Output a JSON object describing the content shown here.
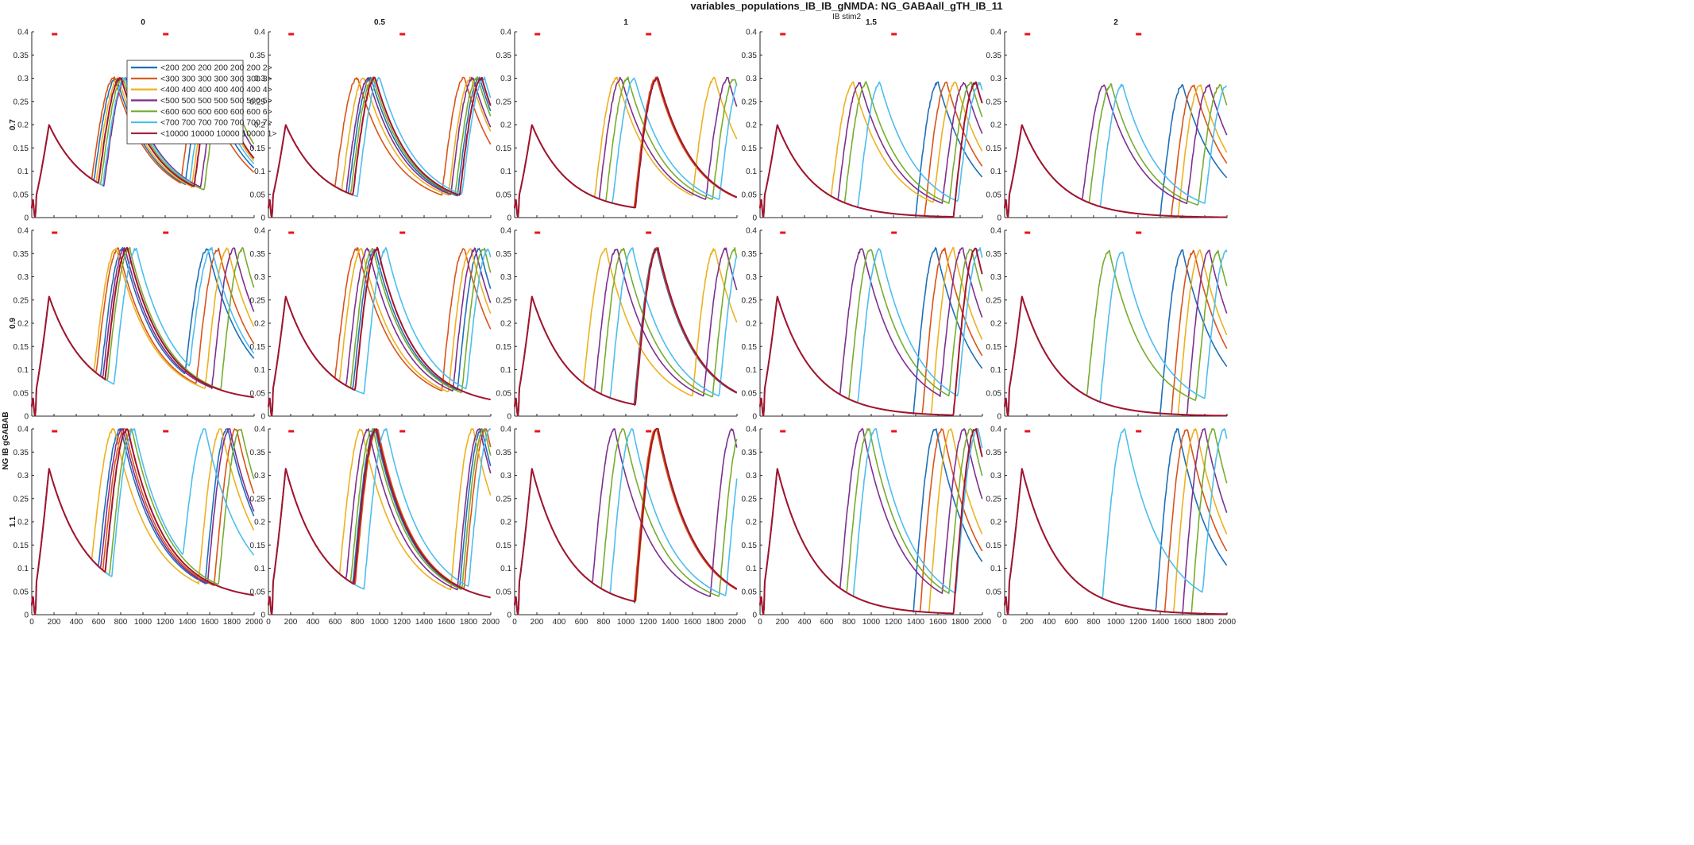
{
  "figure": {
    "title": "variables_populations_IB_IB_gNMDA: NG_GABAall_gTH_IB_11",
    "subtitle": "IB stim2",
    "row_axis_label": "NG IB gGABAB"
  },
  "colors": {
    "axes": "#262626",
    "stim_marker": "#e8141b",
    "series": [
      "#1f6fb8",
      "#d9541a",
      "#edb120",
      "#7e2f8e",
      "#77ac30",
      "#4dbeee",
      "#a2142f"
    ]
  },
  "chart_data": {
    "type": "line",
    "layout": "grid 3 rows x 5 columns, shared legend in top-left panel",
    "x_ticks": [
      0,
      200,
      400,
      600,
      800,
      1000,
      1200,
      1400,
      1600,
      1800,
      2000
    ],
    "y_ticks": [
      0,
      0.05,
      0.1,
      0.15,
      0.2,
      0.25,
      0.3,
      0.35,
      0.4
    ],
    "xlim": [
      0,
      2000
    ],
    "ylim": [
      0,
      0.4
    ],
    "grid": false,
    "legend_position": "top-left panel, upper-left",
    "stim_windows": [
      [
        200,
        250
      ],
      [
        1200,
        1250
      ]
    ],
    "columns": [
      "0",
      "0.5",
      "1",
      "1.5",
      "2"
    ],
    "rows": [
      "0.7",
      "0.9",
      "1.1"
    ],
    "series": [
      {
        "name": "<200 200 200 200 200 200 2>",
        "color": "#1f6fb8"
      },
      {
        "name": "<300 300 300 300 300 300 3>",
        "color": "#d9541a"
      },
      {
        "name": "<400 400 400 400 400 400 4>",
        "color": "#edb120"
      },
      {
        "name": "<500 500 500 500 500 500 5>",
        "color": "#7e2f8e"
      },
      {
        "name": "<600 600 600 600 600 600 6>",
        "color": "#77ac30"
      },
      {
        "name": "<700 700 700 700 700 700 7>",
        "color": "#4dbeee"
      },
      {
        "name": "<10000 10000 10000 10000 1>",
        "color": "#a2142f"
      }
    ],
    "common_first_peak": [
      {
        "row": "0.7",
        "x": 155,
        "y": 0.2
      },
      {
        "row": "0.9",
        "x": 155,
        "y": 0.258
      },
      {
        "row": "1.1",
        "x": 155,
        "y": 0.315
      }
    ],
    "panels": [
      {
        "row": "0.7",
        "col": "0",
        "peak": 0.3,
        "base": 0.03,
        "curves": [
          {
            "s": 0,
            "onsets": [
              560,
              1380
            ]
          },
          {
            "s": 1,
            "onsets": [
              540,
              1340
            ]
          },
          {
            "s": 2,
            "onsets": [
              580,
              1440
            ]
          },
          {
            "s": 3,
            "onsets": [
              650,
              1520
            ]
          },
          {
            "s": 4,
            "onsets": [
              620,
              1550
            ]
          },
          {
            "s": 5,
            "onsets": [
              640,
              1420
            ]
          },
          {
            "s": 6,
            "onsets": [
              600,
              1460
            ]
          }
        ]
      },
      {
        "row": "0.7",
        "col": "0.5",
        "peak": 0.3,
        "base": 0.02,
        "curves": [
          {
            "s": 0,
            "onsets": [
              720,
              1700
            ]
          },
          {
            "s": 1,
            "onsets": [
              600,
              1560
            ]
          },
          {
            "s": 2,
            "onsets": [
              660,
              1620
            ]
          },
          {
            "s": 3,
            "onsets": [
              700,
              1640
            ]
          },
          {
            "s": 4,
            "onsets": [
              740,
              1680
            ]
          },
          {
            "s": 5,
            "onsets": [
              800,
              1740
            ]
          },
          {
            "s": 6,
            "onsets": [
              760,
              1720
            ]
          }
        ]
      },
      {
        "row": "0.7",
        "col": "1",
        "peak": 0.3,
        "base": 0.01,
        "curves": [
          {
            "s": 0,
            "onsets": [
              1080
            ]
          },
          {
            "s": 1,
            "onsets": [
              1075
            ]
          },
          {
            "s": 2,
            "onsets": [
              720,
              1600
            ]
          },
          {
            "s": 3,
            "onsets": [
              760,
              1720
            ]
          },
          {
            "s": 4,
            "onsets": [
              820,
              1780
            ]
          },
          {
            "s": 5,
            "onsets": [
              880,
              1840
            ]
          },
          {
            "s": 6,
            "onsets": [
              1085
            ]
          }
        ]
      },
      {
        "row": "0.7",
        "col": "1.5",
        "peak": 0.29,
        "base": 0.0,
        "curves": [
          {
            "s": 0,
            "onsets": [
              1400
            ]
          },
          {
            "s": 1,
            "onsets": [
              1480
            ]
          },
          {
            "s": 2,
            "onsets": [
              640,
              1560
            ]
          },
          {
            "s": 3,
            "onsets": [
              700,
              1640
            ]
          },
          {
            "s": 4,
            "onsets": [
              760,
              1700
            ]
          },
          {
            "s": 5,
            "onsets": [
              880,
              1780
            ]
          },
          {
            "s": 6,
            "onsets": [
              1740
            ]
          }
        ]
      },
      {
        "row": "0.7",
        "col": "2",
        "peak": 0.285,
        "base": 0.0,
        "curves": [
          {
            "s": 0,
            "onsets": [
              1400
            ]
          },
          {
            "s": 1,
            "onsets": [
              1500
            ]
          },
          {
            "s": 2,
            "onsets": [
              1560
            ]
          },
          {
            "s": 3,
            "onsets": [
              700,
              1640
            ]
          },
          {
            "s": 4,
            "onsets": [
              760,
              1740
            ]
          },
          {
            "s": 5,
            "onsets": [
              860,
              1800
            ]
          },
          {
            "s": 6,
            "onsets": []
          }
        ]
      },
      {
        "row": "0.9",
        "col": "0",
        "peak": 0.36,
        "base": 0.03,
        "curves": [
          {
            "s": 0,
            "onsets": [
              620,
              1380
            ]
          },
          {
            "s": 1,
            "onsets": [
              580,
              1480
            ]
          },
          {
            "s": 2,
            "onsets": [
              560,
              1560
            ]
          },
          {
            "s": 3,
            "onsets": [
              640,
              1620
            ]
          },
          {
            "s": 4,
            "onsets": [
              680,
              1700
            ]
          },
          {
            "s": 5,
            "onsets": [
              740,
              1420
            ]
          },
          {
            "s": 6,
            "onsets": [
              660
            ]
          }
        ]
      },
      {
        "row": "0.9",
        "col": "0.5",
        "peak": 0.36,
        "base": 0.02,
        "curves": [
          {
            "s": 0,
            "onsets": [
              760,
              1700
            ]
          },
          {
            "s": 1,
            "onsets": [
              600,
              1560
            ]
          },
          {
            "s": 2,
            "onsets": [
              640,
              1620
            ]
          },
          {
            "s": 3,
            "onsets": [
              700,
              1660
            ]
          },
          {
            "s": 4,
            "onsets": [
              740,
              1740
            ]
          },
          {
            "s": 5,
            "onsets": [
              860,
              1780
            ]
          },
          {
            "s": 6,
            "onsets": [
              780
            ]
          }
        ]
      },
      {
        "row": "0.9",
        "col": "1",
        "peak": 0.36,
        "base": 0.01,
        "curves": [
          {
            "s": 0,
            "onsets": [
              1075
            ]
          },
          {
            "s": 1,
            "onsets": [
              1080
            ]
          },
          {
            "s": 2,
            "onsets": [
              620,
              1600
            ]
          },
          {
            "s": 3,
            "onsets": [
              720,
              1700
            ]
          },
          {
            "s": 4,
            "onsets": [
              780,
              1780
            ]
          },
          {
            "s": 5,
            "onsets": [
              860,
              1840
            ]
          },
          {
            "s": 6,
            "onsets": [
              1085
            ]
          }
        ]
      },
      {
        "row": "0.9",
        "col": "1.5",
        "peak": 0.36,
        "base": 0.0,
        "curves": [
          {
            "s": 0,
            "onsets": [
              1380
            ]
          },
          {
            "s": 1,
            "onsets": [
              1460
            ]
          },
          {
            "s": 2,
            "onsets": [
              1540
            ]
          },
          {
            "s": 3,
            "onsets": [
              720,
              1620
            ]
          },
          {
            "s": 4,
            "onsets": [
              800,
              1700
            ]
          },
          {
            "s": 5,
            "onsets": [
              880,
              1780
            ]
          },
          {
            "s": 6,
            "onsets": [
              1740
            ]
          }
        ]
      },
      {
        "row": "0.9",
        "col": "2",
        "peak": 0.355,
        "base": 0.0,
        "curves": [
          {
            "s": 0,
            "onsets": [
              1400
            ]
          },
          {
            "s": 1,
            "onsets": [
              1500
            ]
          },
          {
            "s": 2,
            "onsets": [
              1560
            ]
          },
          {
            "s": 3,
            "onsets": [
              1640
            ]
          },
          {
            "s": 4,
            "onsets": [
              740,
              1720
            ]
          },
          {
            "s": 5,
            "onsets": [
              860,
              1800
            ]
          },
          {
            "s": 6,
            "onsets": []
          }
        ]
      },
      {
        "row": "1.1",
        "col": "0",
        "peak": 0.4,
        "base": 0.03,
        "curves": [
          {
            "s": 0,
            "onsets": [
              600,
              1560
            ]
          },
          {
            "s": 1,
            "onsets": [
              640,
              1640
            ]
          },
          {
            "s": 2,
            "onsets": [
              540,
              1500
            ]
          },
          {
            "s": 3,
            "onsets": [
              620,
              1580
            ]
          },
          {
            "s": 4,
            "onsets": [
              700,
              1680
            ]
          },
          {
            "s": 5,
            "onsets": [
              720,
              1360
            ]
          },
          {
            "s": 6,
            "onsets": [
              660
            ]
          }
        ]
      },
      {
        "row": "1.1",
        "col": "0.5",
        "peak": 0.4,
        "base": 0.02,
        "curves": [
          {
            "s": 0,
            "onsets": [
              760,
              1720
            ]
          },
          {
            "s": 1,
            "onsets": [
              780,
              1760
            ]
          },
          {
            "s": 2,
            "onsets": [
              640,
              1640
            ]
          },
          {
            "s": 3,
            "onsets": [
              700,
              1700
            ]
          },
          {
            "s": 4,
            "onsets": [
              740,
              1740
            ]
          },
          {
            "s": 5,
            "onsets": [
              860,
              1800
            ]
          },
          {
            "s": 6,
            "onsets": [
              770
            ]
          }
        ]
      },
      {
        "row": "1.1",
        "col": "1",
        "peak": 0.4,
        "base": 0.01,
        "curves": [
          {
            "s": 0,
            "onsets": [
              1080
            ]
          },
          {
            "s": 1,
            "onsets": [
              1075
            ]
          },
          {
            "s": 2,
            "onsets": [
              1090
            ]
          },
          {
            "s": 3,
            "onsets": [
              700,
              1760
            ]
          },
          {
            "s": 4,
            "onsets": [
              780,
              1840
            ]
          },
          {
            "s": 5,
            "onsets": [
              860,
              1900
            ]
          },
          {
            "s": 6,
            "onsets": [
              1085
            ]
          }
        ]
      },
      {
        "row": "1.1",
        "col": "1.5",
        "peak": 0.4,
        "base": 0.0,
        "curves": [
          {
            "s": 0,
            "onsets": [
              1380
            ]
          },
          {
            "s": 1,
            "onsets": [
              1440
            ]
          },
          {
            "s": 2,
            "onsets": [
              1520
            ]
          },
          {
            "s": 3,
            "onsets": [
              720,
              1640
            ]
          },
          {
            "s": 4,
            "onsets": [
              780,
              1700
            ]
          },
          {
            "s": 5,
            "onsets": [
              840,
              1760
            ]
          },
          {
            "s": 6,
            "onsets": [
              1740
            ]
          }
        ]
      },
      {
        "row": "1.1",
        "col": "2",
        "peak": 0.4,
        "base": 0.0,
        "curves": [
          {
            "s": 0,
            "onsets": [
              1360
            ]
          },
          {
            "s": 1,
            "onsets": [
              1440
            ]
          },
          {
            "s": 2,
            "onsets": [
              1520
            ]
          },
          {
            "s": 3,
            "onsets": [
              1600
            ]
          },
          {
            "s": 4,
            "onsets": [
              1680
            ]
          },
          {
            "s": 5,
            "onsets": [
              880,
              1780
            ]
          },
          {
            "s": 6,
            "onsets": []
          }
        ]
      }
    ]
  }
}
